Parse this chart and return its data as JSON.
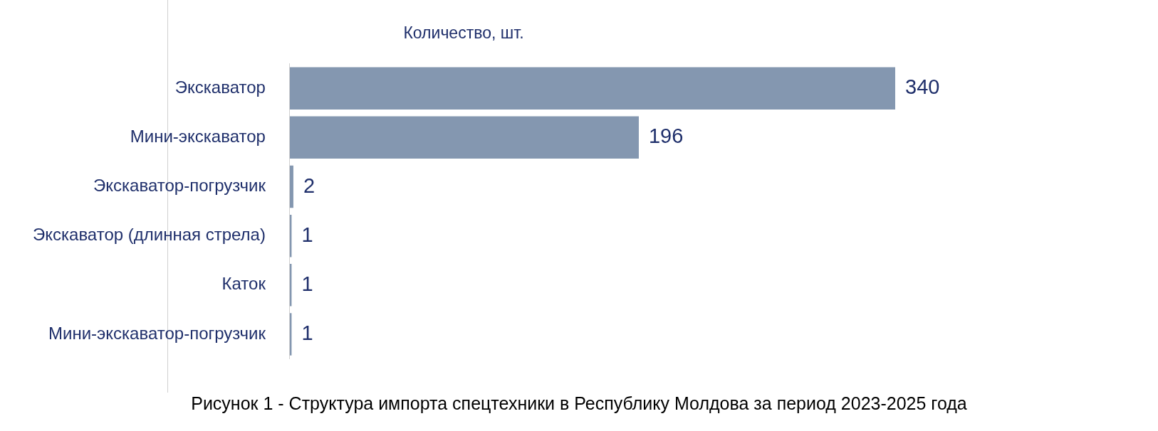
{
  "chart_data": {
    "type": "bar",
    "orientation": "horizontal",
    "title": "Количество, шт.",
    "categories": [
      "Экскаватор",
      "Мини-экскаватор",
      "Экскаватор-погрузчик",
      "Экскаватор (длинная стрела)",
      "Каток",
      "Мини-экскаватор-погрузчик"
    ],
    "values": [
      340,
      196,
      2,
      1,
      1,
      1
    ],
    "color": "#8497b0",
    "data_labels": true,
    "annotations": [
      "Рисунок 1 - Структура импорта спецтехники в Республику Молдова за период 2023-2025 года"
    ]
  }
}
